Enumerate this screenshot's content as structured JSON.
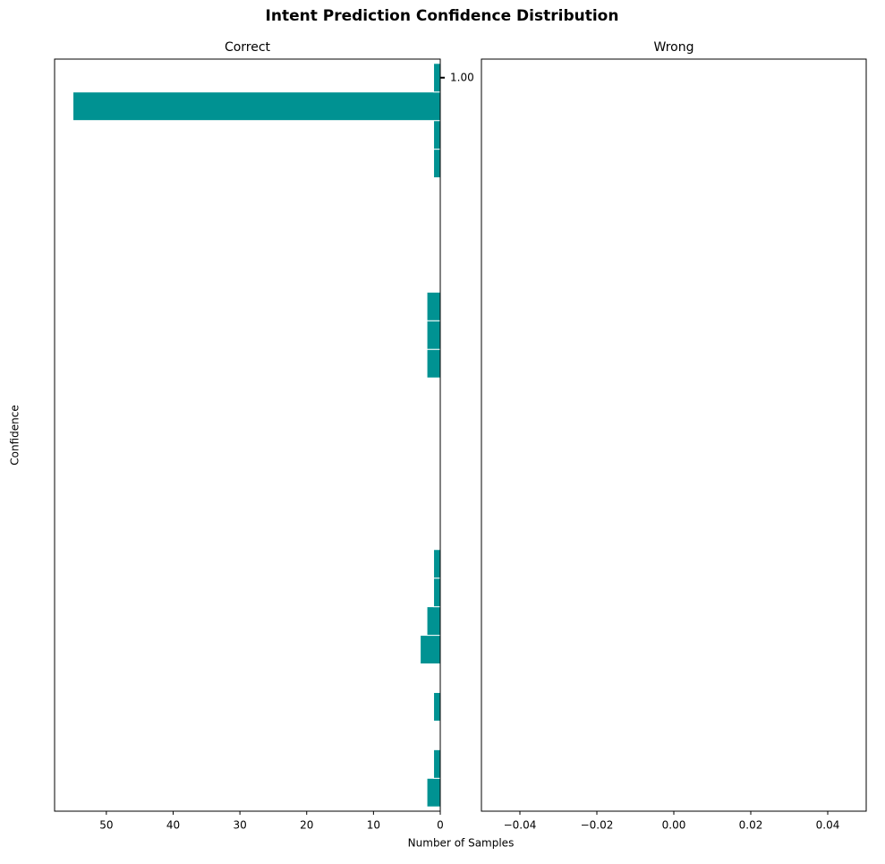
{
  "title": "Intent Prediction Confidence Distribution",
  "xlabel": "Number of Samples",
  "ylabel": "Confidence",
  "chart_data": [
    {
      "type": "histogram",
      "orientation": "horizontal",
      "title": "Correct",
      "color": "#009292",
      "edgecolor": "#ffffff",
      "bins": [
        0.999745,
        0.999755,
        0.999765,
        0.999775,
        0.999785,
        0.999795,
        0.999805,
        0.999815,
        0.999825,
        0.999835,
        0.999845,
        0.999855,
        0.999865,
        0.999875,
        0.999885,
        0.999895,
        0.999905,
        0.999915,
        0.999925,
        0.999935,
        0.999945,
        0.999955,
        0.999965,
        0.999975,
        0.999985,
        0.999995,
        1.000005
      ],
      "values": [
        2,
        1,
        0,
        1,
        0,
        3,
        2,
        1,
        1,
        0,
        0,
        0,
        0,
        0,
        0,
        2,
        2,
        2,
        0,
        0,
        0,
        0,
        1,
        1,
        55,
        1
      ],
      "xlim": [
        57.75,
        0
      ],
      "xticks": [
        50,
        40,
        30,
        20,
        10,
        0
      ],
      "ylim": [
        0.9997435,
        1.0000065
      ],
      "yticks": [
        {
          "value": 1.0,
          "label": "1.00"
        }
      ]
    },
    {
      "type": "histogram",
      "orientation": "horizontal",
      "title": "Wrong",
      "xlim": [
        -0.05,
        0.05
      ],
      "xticks": [
        {
          "value": -0.04,
          "label": "−0.04"
        },
        {
          "value": -0.02,
          "label": "−0.02"
        },
        {
          "value": 0,
          "label": "0.00"
        },
        {
          "value": 0.02,
          "label": "0.02"
        },
        {
          "value": 0.04,
          "label": "0.04"
        }
      ]
    }
  ]
}
